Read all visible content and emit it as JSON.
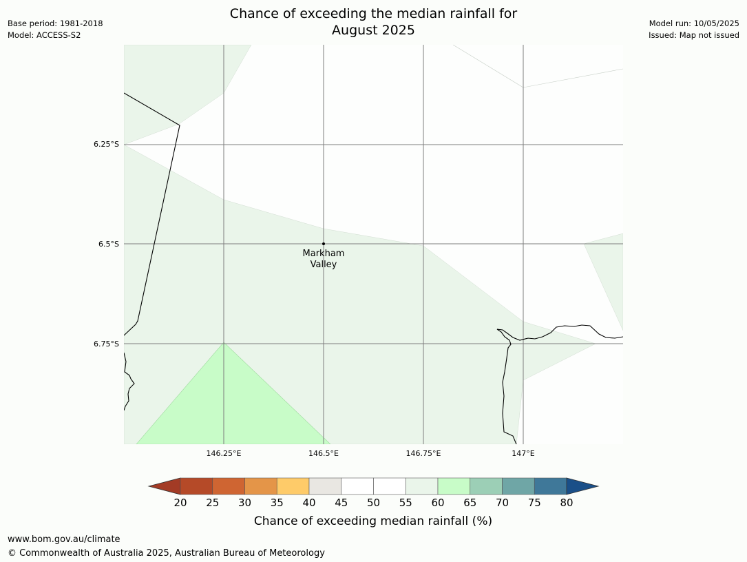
{
  "title_line1": "Chance of exceeding the median rainfall for",
  "title_line2": "August 2025",
  "meta_left": {
    "base_period": "Base period: 1981-2018",
    "model": "Model: ACCESS-S2"
  },
  "meta_right": {
    "model_run": "Model run: 10/05/2025",
    "issued": "Issued: Map not issued"
  },
  "map": {
    "place": {
      "line1": "Markham",
      "line2": "Valley",
      "lon": 146.5,
      "lat": -6.5
    },
    "lon_ticks": [
      "146.25°E",
      "146.5°E",
      "146.75°E",
      "147°E"
    ],
    "lat_ticks": [
      "6.25°S",
      "6.5°S",
      "6.75°S"
    ]
  },
  "colorbar": {
    "ticks": [
      "20",
      "25",
      "30",
      "35",
      "40",
      "45",
      "50",
      "55",
      "60",
      "65",
      "70",
      "75",
      "80"
    ],
    "colors": [
      "#a33b25",
      "#b54a28",
      "#cf6532",
      "#e49548",
      "#fecb69",
      "#e9e7e2",
      "#ffffff",
      "#ffffff",
      "#eaf5ea",
      "#c8fcc8",
      "#9ccfb6",
      "#6fa6a6",
      "#3f7899",
      "#1a4f88"
    ],
    "label": "Chance of exceeding median rainfall (%)"
  },
  "footer": {
    "url": "www.bom.gov.au/climate",
    "copyright": "© Commonwealth of Australia 2025, Australian Bureau of Meteorology"
  }
}
